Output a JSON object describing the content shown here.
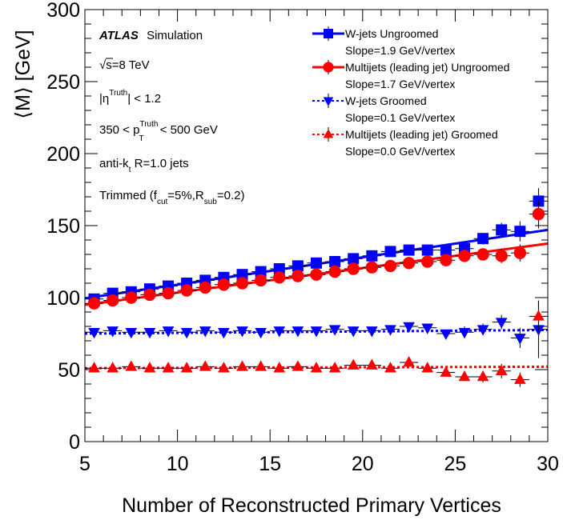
{
  "chart_data": {
    "type": "scatter",
    "xlabel": "Number of Reconstructed Primary Vertices",
    "ylabel": "⟨M⟩ [GeV]",
    "xlim": [
      5,
      30
    ],
    "ylim": [
      0,
      300
    ],
    "x_ticks": [
      "5",
      "10",
      "15",
      "20",
      "25",
      "30"
    ],
    "y_ticks": [
      "0",
      "50",
      "100",
      "150",
      "200",
      "250",
      "300"
    ],
    "legend_position": "top-right",
    "info": {
      "atlas": "ATLAS",
      "sim": "Simulation",
      "energy": {
        "sqrt": "√",
        "rest": "s=8 TeV"
      },
      "eta": {
        "pre": "|η",
        "sup": "Truth",
        "post": "| < 1.2"
      },
      "pt": {
        "pre": "350 < p",
        "sup": "Truth",
        "sub": "T",
        "post": " < 500 GeV"
      },
      "algo": {
        "pre": "anti-k",
        "sub": "t",
        "post": " R=1.0 jets"
      },
      "trim": {
        "pre": "Trimmed (f",
        "sub1": "cut",
        "mid": "=5%,R",
        "sub2": "sub",
        "post": "=0.2)"
      }
    },
    "series": [
      {
        "name": "W-jets Ungroomed",
        "slope_label": "Slope=1.9 GeV/vertex",
        "color": "#0000ff",
        "marker": "square",
        "line": "solid",
        "fit": {
          "x": [
            5,
            30
          ],
          "y": [
            99.5,
            147
          ]
        },
        "x": [
          5.5,
          6.5,
          7.5,
          8.5,
          9.5,
          10.5,
          11.5,
          12.5,
          13.5,
          14.5,
          15.5,
          16.5,
          17.5,
          18.5,
          19.5,
          20.5,
          21.5,
          22.5,
          23.5,
          24.5,
          25.5,
          26.5,
          27.5,
          28.5,
          29.5
        ],
        "y": [
          99,
          103,
          104,
          106,
          108,
          110,
          112,
          114,
          116,
          118,
          120,
          122,
          124,
          125,
          127,
          129,
          132,
          133,
          133,
          133,
          134,
          141,
          147,
          146,
          167
        ],
        "err": [
          1,
          1,
          1,
          1,
          1,
          1,
          1,
          1,
          1,
          1,
          1,
          1,
          1,
          1,
          1,
          1,
          1,
          2,
          2,
          2,
          3,
          4,
          5,
          7,
          9
        ]
      },
      {
        "name": "Multijets (leading jet) Ungroomed",
        "slope_label": "Slope=1.7 GeV/vertex",
        "color": "#ff0000",
        "marker": "circle",
        "line": "solid",
        "fit": {
          "x": [
            5,
            30
          ],
          "y": [
            95,
            137.5
          ]
        },
        "x": [
          5.5,
          6.5,
          7.5,
          8.5,
          9.5,
          10.5,
          11.5,
          12.5,
          13.5,
          14.5,
          15.5,
          16.5,
          17.5,
          18.5,
          19.5,
          20.5,
          21.5,
          22.5,
          23.5,
          24.5,
          25.5,
          26.5,
          27.5,
          28.5,
          29.5
        ],
        "y": [
          96,
          98,
          100,
          102,
          103,
          105,
          107,
          109,
          110,
          112,
          114,
          115,
          116,
          118,
          120,
          121,
          122,
          124,
          125,
          126,
          129,
          130,
          129,
          131,
          158
        ],
        "err": [
          1,
          1,
          1,
          1,
          1,
          1,
          1,
          1,
          1,
          1,
          1,
          1,
          1,
          1,
          1,
          1,
          1,
          2,
          2,
          2,
          3,
          4,
          5,
          6,
          10
        ]
      },
      {
        "name": "W-jets Groomed",
        "slope_label": "Slope=0.1 GeV/vertex",
        "color": "#0000ff",
        "marker": "triangle-down",
        "line": "dotted",
        "fit": {
          "x": [
            5,
            30
          ],
          "y": [
            75,
            77.5
          ]
        },
        "x": [
          5.5,
          6.5,
          7.5,
          8.5,
          9.5,
          10.5,
          11.5,
          12.5,
          13.5,
          14.5,
          15.5,
          16.5,
          17.5,
          18.5,
          19.5,
          20.5,
          21.5,
          22.5,
          23.5,
          24.5,
          25.5,
          26.5,
          27.5,
          28.5,
          29.5
        ],
        "y": [
          76,
          77,
          76,
          76,
          77,
          76,
          77,
          76,
          77,
          76,
          77,
          77,
          77,
          78,
          77,
          77,
          78,
          80,
          79,
          75,
          76,
          78,
          83,
          72,
          78
        ],
        "err": [
          1,
          1,
          1,
          1,
          1,
          1,
          1,
          1,
          1,
          1,
          1,
          1,
          1,
          1,
          1,
          1,
          1,
          2,
          2,
          2,
          4,
          4,
          5,
          7,
          20
        ]
      },
      {
        "name": "Multijets (leading jet) Groomed",
        "slope_label": "Slope=0.0 GeV/vertex",
        "color": "#ff0000",
        "marker": "triangle-up",
        "line": "dotted",
        "fit": {
          "x": [
            5,
            30
          ],
          "y": [
            51,
            52
          ]
        },
        "x": [
          5.5,
          6.5,
          7.5,
          8.5,
          9.5,
          10.5,
          11.5,
          12.5,
          13.5,
          14.5,
          15.5,
          16.5,
          17.5,
          18.5,
          19.5,
          20.5,
          21.5,
          22.5,
          23.5,
          24.5,
          25.5,
          26.5,
          27.5,
          28.5,
          29.5
        ],
        "y": [
          51,
          51,
          52,
          51,
          51,
          51,
          52,
          51,
          52,
          52,
          51,
          52,
          51,
          51,
          53,
          53,
          51,
          55,
          51,
          48,
          45,
          45,
          49,
          43,
          87
        ],
        "err": [
          1,
          1,
          1,
          1,
          1,
          1,
          1,
          1,
          1,
          1,
          1,
          1,
          1,
          1,
          1,
          1,
          1,
          2,
          2,
          2,
          3,
          4,
          5,
          5,
          10
        ]
      }
    ]
  }
}
